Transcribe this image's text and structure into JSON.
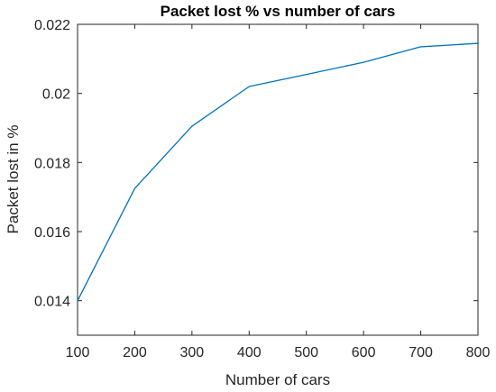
{
  "chart_data": {
    "type": "line",
    "title": "Packet lost % vs number of cars",
    "xlabel": "Number of cars",
    "ylabel": "Packet lost in %",
    "xlim": [
      100,
      800
    ],
    "ylim": [
      0.013,
      0.022
    ],
    "xticks": [
      100,
      200,
      300,
      400,
      500,
      600,
      700,
      800
    ],
    "yticks": [
      0.014,
      0.016,
      0.018,
      0.02,
      0.022
    ],
    "ytick_labels": [
      "0.014",
      "0.016",
      "0.018",
      "0.02",
      "0.022"
    ],
    "grid": false,
    "legend": "none",
    "series": [
      {
        "color": "#0072bd",
        "x": [
          100,
          200,
          300,
          400,
          500,
          600,
          700,
          800
        ],
        "y": [
          0.014,
          0.01725,
          0.01905,
          0.0202,
          0.02055,
          0.0209,
          0.02135,
          0.02145
        ]
      }
    ]
  }
}
